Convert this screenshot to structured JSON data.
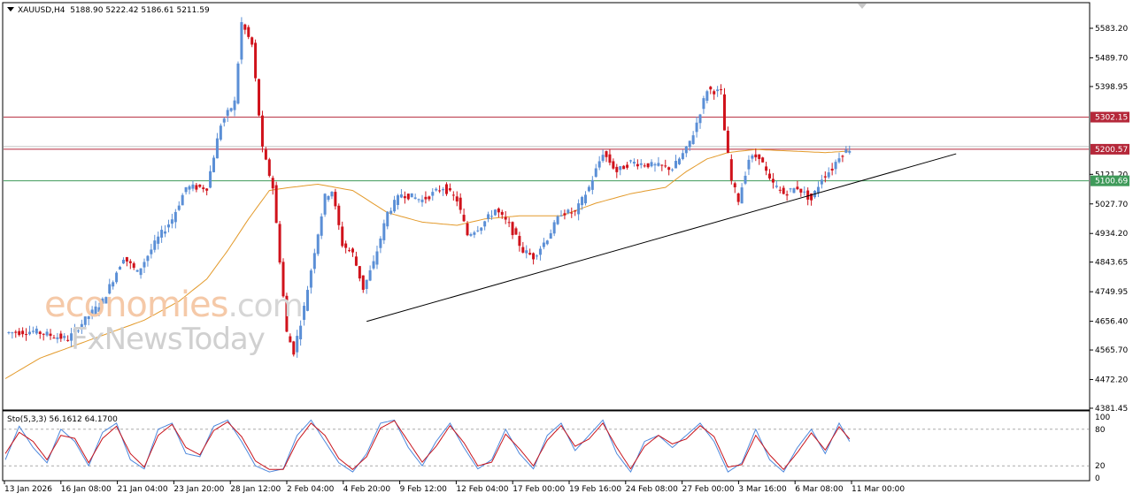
{
  "header": {
    "symbol": "XAUUSD,H4",
    "ohlc": "5188.90 5222.42 5186.61 5211.59"
  },
  "stochastic": {
    "label": "Sto(5,3,3) 56.1612 64.1700",
    "axis_labels": [
      "100",
      "80",
      "20",
      "0"
    ]
  },
  "watermark": {
    "part1": "economies",
    "part2": ".com",
    "line2": "FxNewsToday"
  },
  "colors": {
    "bull": "#5b8fd6",
    "bear": "#d0121b",
    "ma": "#e39a2b",
    "resistance": "#b5283a",
    "support": "#3f9a5a",
    "trendline": "#000000",
    "stoch_main": "#4d88dc",
    "stoch_signal": "#c8141c"
  },
  "chart_data": {
    "type": "line",
    "symbol": "XAUUSD",
    "timeframe": "H4",
    "ylim": [
      4381.45,
      5630
    ],
    "y_ticks": [
      5583.2,
      5489.7,
      5398.95,
      5302.15,
      5200.57,
      5121.2,
      5100.69,
      5027.7,
      4934.2,
      4843.65,
      4749.95,
      4656.4,
      4565.7,
      4472.2,
      4381.45
    ],
    "y_tick_labels": [
      "5583.20",
      "5489.70",
      "5398.95",
      "5121.20",
      "5027.70",
      "4934.20",
      "4843.65",
      "4749.95",
      "4656.40",
      "4565.70",
      "4472.20",
      "4381.45"
    ],
    "x_labels": [
      "13 Jan 2026",
      "16 Jan 08:00",
      "21 Jan 04:00",
      "23 Jan 20:00",
      "28 Jan 12:00",
      "2 Feb 04:00",
      "4 Feb 20:00",
      "9 Feb 12:00",
      "12 Feb 04:00",
      "17 Feb 00:00",
      "19 Feb 16:00",
      "24 Feb 08:00",
      "27 Feb 00:00",
      "3 Mar 16:00",
      "6 Mar 08:00",
      "11 Mar 00:00"
    ],
    "horizontal_levels": [
      {
        "value": 5302.15,
        "label": "5302.15",
        "color": "#b5283a"
      },
      {
        "value": 5200.57,
        "label": "5200.57",
        "color": "#b5283a"
      },
      {
        "value": 5100.69,
        "label": "5100.69",
        "color": "#3f9a5a"
      }
    ],
    "trendline": [
      {
        "bar": 104,
        "value": 4656
      },
      {
        "bar": 264,
        "value": 5175
      }
    ],
    "price_path": [
      [
        0,
        4620
      ],
      [
        8,
        4625
      ],
      [
        18,
        4600
      ],
      [
        22,
        4650
      ],
      [
        28,
        4720
      ],
      [
        34,
        4860
      ],
      [
        38,
        4810
      ],
      [
        44,
        4920
      ],
      [
        48,
        4980
      ],
      [
        52,
        5080
      ],
      [
        58,
        5080
      ],
      [
        62,
        5280
      ],
      [
        66,
        5350
      ],
      [
        68,
        5600
      ],
      [
        71,
        5530
      ],
      [
        74,
        5200
      ],
      [
        77,
        5080
      ],
      [
        79,
        4850
      ],
      [
        81,
        4620
      ],
      [
        83,
        4560
      ],
      [
        86,
        4700
      ],
      [
        89,
        4880
      ],
      [
        92,
        5050
      ],
      [
        94,
        5070
      ],
      [
        97,
        4900
      ],
      [
        100,
        4870
      ],
      [
        103,
        4760
      ],
      [
        106,
        4840
      ],
      [
        110,
        5000
      ],
      [
        114,
        5060
      ],
      [
        120,
        5040
      ],
      [
        126,
        5080
      ],
      [
        130,
        5040
      ],
      [
        133,
        4930
      ],
      [
        137,
        4960
      ],
      [
        141,
        5010
      ],
      [
        145,
        4960
      ],
      [
        149,
        4880
      ],
      [
        152,
        4860
      ],
      [
        156,
        4920
      ],
      [
        160,
        5000
      ],
      [
        164,
        5000
      ],
      [
        168,
        5080
      ],
      [
        172,
        5190
      ],
      [
        176,
        5130
      ],
      [
        180,
        5160
      ],
      [
        186,
        5150
      ],
      [
        192,
        5140
      ],
      [
        196,
        5200
      ],
      [
        198,
        5250
      ],
      [
        202,
        5390
      ],
      [
        206,
        5380
      ],
      [
        207,
        5260
      ],
      [
        209,
        5100
      ],
      [
        211,
        5040
      ],
      [
        214,
        5170
      ],
      [
        217,
        5180
      ],
      [
        220,
        5100
      ],
      [
        224,
        5060
      ],
      [
        228,
        5080
      ],
      [
        232,
        5040
      ],
      [
        235,
        5110
      ],
      [
        238,
        5140
      ],
      [
        240,
        5180
      ],
      [
        243,
        5202
      ]
    ],
    "moving_average_path": [
      [
        0,
        4475
      ],
      [
        10,
        4540
      ],
      [
        20,
        4580
      ],
      [
        30,
        4620
      ],
      [
        40,
        4660
      ],
      [
        50,
        4720
      ],
      [
        58,
        4790
      ],
      [
        64,
        4880
      ],
      [
        70,
        4980
      ],
      [
        76,
        5070
      ],
      [
        82,
        5080
      ],
      [
        90,
        5090
      ],
      [
        100,
        5070
      ],
      [
        110,
        5000
      ],
      [
        120,
        4970
      ],
      [
        130,
        4960
      ],
      [
        138,
        4980
      ],
      [
        148,
        4990
      ],
      [
        160,
        4990
      ],
      [
        170,
        5030
      ],
      [
        180,
        5060
      ],
      [
        190,
        5080
      ],
      [
        196,
        5130
      ],
      [
        202,
        5170
      ],
      [
        208,
        5190
      ],
      [
        216,
        5200
      ],
      [
        226,
        5195
      ],
      [
        236,
        5190
      ],
      [
        243,
        5195
      ]
    ],
    "stochastic_main": [
      [
        0,
        30
      ],
      [
        4,
        85
      ],
      [
        8,
        50
      ],
      [
        12,
        25
      ],
      [
        16,
        80
      ],
      [
        20,
        60
      ],
      [
        24,
        20
      ],
      [
        28,
        75
      ],
      [
        32,
        90
      ],
      [
        36,
        30
      ],
      [
        40,
        15
      ],
      [
        44,
        80
      ],
      [
        48,
        90
      ],
      [
        52,
        40
      ],
      [
        56,
        35
      ],
      [
        60,
        85
      ],
      [
        64,
        95
      ],
      [
        68,
        60
      ],
      [
        72,
        20
      ],
      [
        76,
        10
      ],
      [
        80,
        15
      ],
      [
        84,
        70
      ],
      [
        88,
        95
      ],
      [
        92,
        60
      ],
      [
        96,
        25
      ],
      [
        100,
        10
      ],
      [
        104,
        40
      ],
      [
        108,
        90
      ],
      [
        112,
        95
      ],
      [
        116,
        50
      ],
      [
        120,
        20
      ],
      [
        124,
        60
      ],
      [
        128,
        90
      ],
      [
        132,
        50
      ],
      [
        136,
        15
      ],
      [
        140,
        30
      ],
      [
        144,
        80
      ],
      [
        148,
        40
      ],
      [
        152,
        15
      ],
      [
        156,
        70
      ],
      [
        160,
        90
      ],
      [
        164,
        45
      ],
      [
        168,
        70
      ],
      [
        172,
        95
      ],
      [
        176,
        40
      ],
      [
        180,
        10
      ],
      [
        184,
        60
      ],
      [
        188,
        70
      ],
      [
        192,
        50
      ],
      [
        196,
        70
      ],
      [
        200,
        90
      ],
      [
        204,
        60
      ],
      [
        208,
        10
      ],
      [
        212,
        25
      ],
      [
        216,
        80
      ],
      [
        220,
        30
      ],
      [
        224,
        10
      ],
      [
        228,
        50
      ],
      [
        232,
        80
      ],
      [
        236,
        40
      ],
      [
        240,
        90
      ],
      [
        243,
        60
      ]
    ],
    "stochastic_signal": [
      [
        0,
        40
      ],
      [
        4,
        75
      ],
      [
        8,
        60
      ],
      [
        12,
        30
      ],
      [
        16,
        70
      ],
      [
        20,
        65
      ],
      [
        24,
        25
      ],
      [
        28,
        65
      ],
      [
        32,
        85
      ],
      [
        36,
        40
      ],
      [
        40,
        18
      ],
      [
        44,
        70
      ],
      [
        48,
        88
      ],
      [
        52,
        50
      ],
      [
        56,
        38
      ],
      [
        60,
        78
      ],
      [
        64,
        92
      ],
      [
        68,
        68
      ],
      [
        72,
        28
      ],
      [
        76,
        14
      ],
      [
        80,
        14
      ],
      [
        84,
        60
      ],
      [
        88,
        90
      ],
      [
        92,
        70
      ],
      [
        96,
        32
      ],
      [
        100,
        14
      ],
      [
        104,
        35
      ],
      [
        108,
        82
      ],
      [
        112,
        94
      ],
      [
        116,
        60
      ],
      [
        120,
        26
      ],
      [
        124,
        52
      ],
      [
        128,
        86
      ],
      [
        132,
        58
      ],
      [
        136,
        20
      ],
      [
        140,
        26
      ],
      [
        144,
        72
      ],
      [
        148,
        48
      ],
      [
        152,
        20
      ],
      [
        156,
        62
      ],
      [
        160,
        86
      ],
      [
        164,
        52
      ],
      [
        168,
        64
      ],
      [
        172,
        90
      ],
      [
        176,
        50
      ],
      [
        180,
        15
      ],
      [
        184,
        52
      ],
      [
        188,
        70
      ],
      [
        192,
        56
      ],
      [
        196,
        64
      ],
      [
        200,
        86
      ],
      [
        204,
        68
      ],
      [
        208,
        18
      ],
      [
        212,
        22
      ],
      [
        216,
        70
      ],
      [
        220,
        38
      ],
      [
        224,
        14
      ],
      [
        228,
        42
      ],
      [
        232,
        74
      ],
      [
        236,
        46
      ],
      [
        240,
        84
      ],
      [
        243,
        64
      ]
    ]
  }
}
